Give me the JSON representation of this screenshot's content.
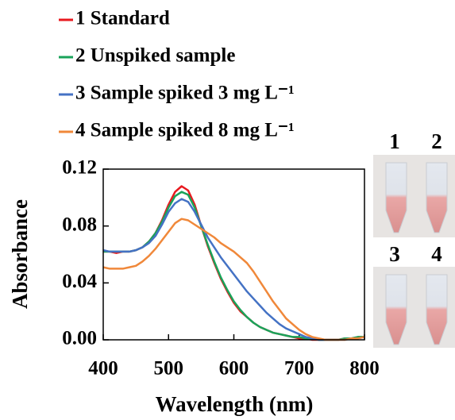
{
  "chart_data": {
    "type": "line",
    "xlabel": "Wavelength (nm)",
    "ylabel": "Absorbance",
    "x": [
      400,
      410,
      420,
      430,
      440,
      450,
      460,
      470,
      480,
      490,
      500,
      510,
      520,
      530,
      540,
      550,
      560,
      570,
      580,
      590,
      600,
      610,
      620,
      630,
      640,
      650,
      660,
      670,
      680,
      690,
      700,
      710,
      720,
      730,
      740,
      750,
      760,
      770,
      780,
      790,
      800
    ],
    "series": [
      {
        "name": "1 Standard",
        "color": "#e8191f",
        "values": [
          0.062,
          0.062,
          0.061,
          0.062,
          0.062,
          0.063,
          0.065,
          0.069,
          0.075,
          0.084,
          0.095,
          0.104,
          0.108,
          0.105,
          0.095,
          0.08,
          0.066,
          0.054,
          0.043,
          0.034,
          0.026,
          0.02,
          0.016,
          0.012,
          0.009,
          0.007,
          0.005,
          0.004,
          0.003,
          0.002,
          0.001,
          0.001,
          0.0,
          0.0,
          0.0,
          0.0,
          0.0,
          0.001,
          0.001,
          0.002,
          0.002
        ]
      },
      {
        "name": "2 Unspiked sample",
        "color": "#1aa35a",
        "values": [
          0.062,
          0.062,
          0.062,
          0.062,
          0.062,
          0.063,
          0.065,
          0.069,
          0.075,
          0.083,
          0.093,
          0.101,
          0.104,
          0.102,
          0.093,
          0.08,
          0.067,
          0.055,
          0.044,
          0.035,
          0.027,
          0.021,
          0.016,
          0.012,
          0.009,
          0.007,
          0.005,
          0.004,
          0.003,
          0.002,
          0.002,
          0.001,
          0.001,
          0.0,
          0.0,
          0.0,
          0.0,
          0.001,
          0.001,
          0.002,
          0.002
        ]
      },
      {
        "name": "3 Sample spiked 3 mg L⁻¹",
        "color": "#4472c4",
        "values": [
          0.063,
          0.062,
          0.062,
          0.062,
          0.062,
          0.063,
          0.065,
          0.068,
          0.073,
          0.081,
          0.09,
          0.096,
          0.099,
          0.097,
          0.09,
          0.081,
          0.072,
          0.065,
          0.058,
          0.052,
          0.046,
          0.04,
          0.034,
          0.029,
          0.024,
          0.019,
          0.015,
          0.011,
          0.008,
          0.006,
          0.004,
          0.002,
          0.001,
          0.0,
          0.0,
          0.0,
          0.0,
          0.0,
          0.001,
          0.001,
          0.002
        ]
      },
      {
        "name": "4 Sample spiked 8 mg L⁻¹",
        "color": "#f0883a",
        "values": [
          0.051,
          0.05,
          0.05,
          0.05,
          0.051,
          0.052,
          0.055,
          0.059,
          0.064,
          0.07,
          0.076,
          0.082,
          0.085,
          0.084,
          0.081,
          0.078,
          0.075,
          0.072,
          0.068,
          0.065,
          0.062,
          0.058,
          0.054,
          0.048,
          0.041,
          0.034,
          0.027,
          0.021,
          0.015,
          0.011,
          0.007,
          0.004,
          0.002,
          0.001,
          0.0,
          0.0,
          0.0,
          0.0,
          0.001,
          0.001,
          0.002
        ]
      }
    ],
    "xlim": [
      400,
      800
    ],
    "xticks": [
      400,
      500,
      600,
      700,
      800
    ],
    "ylim": [
      0,
      0.12
    ],
    "yticks": [
      {
        "value": 0,
        "label": "0.00"
      },
      0.04,
      0.08,
      0.12
    ]
  },
  "photo_labels": [
    "1",
    "2",
    "3",
    "4"
  ]
}
